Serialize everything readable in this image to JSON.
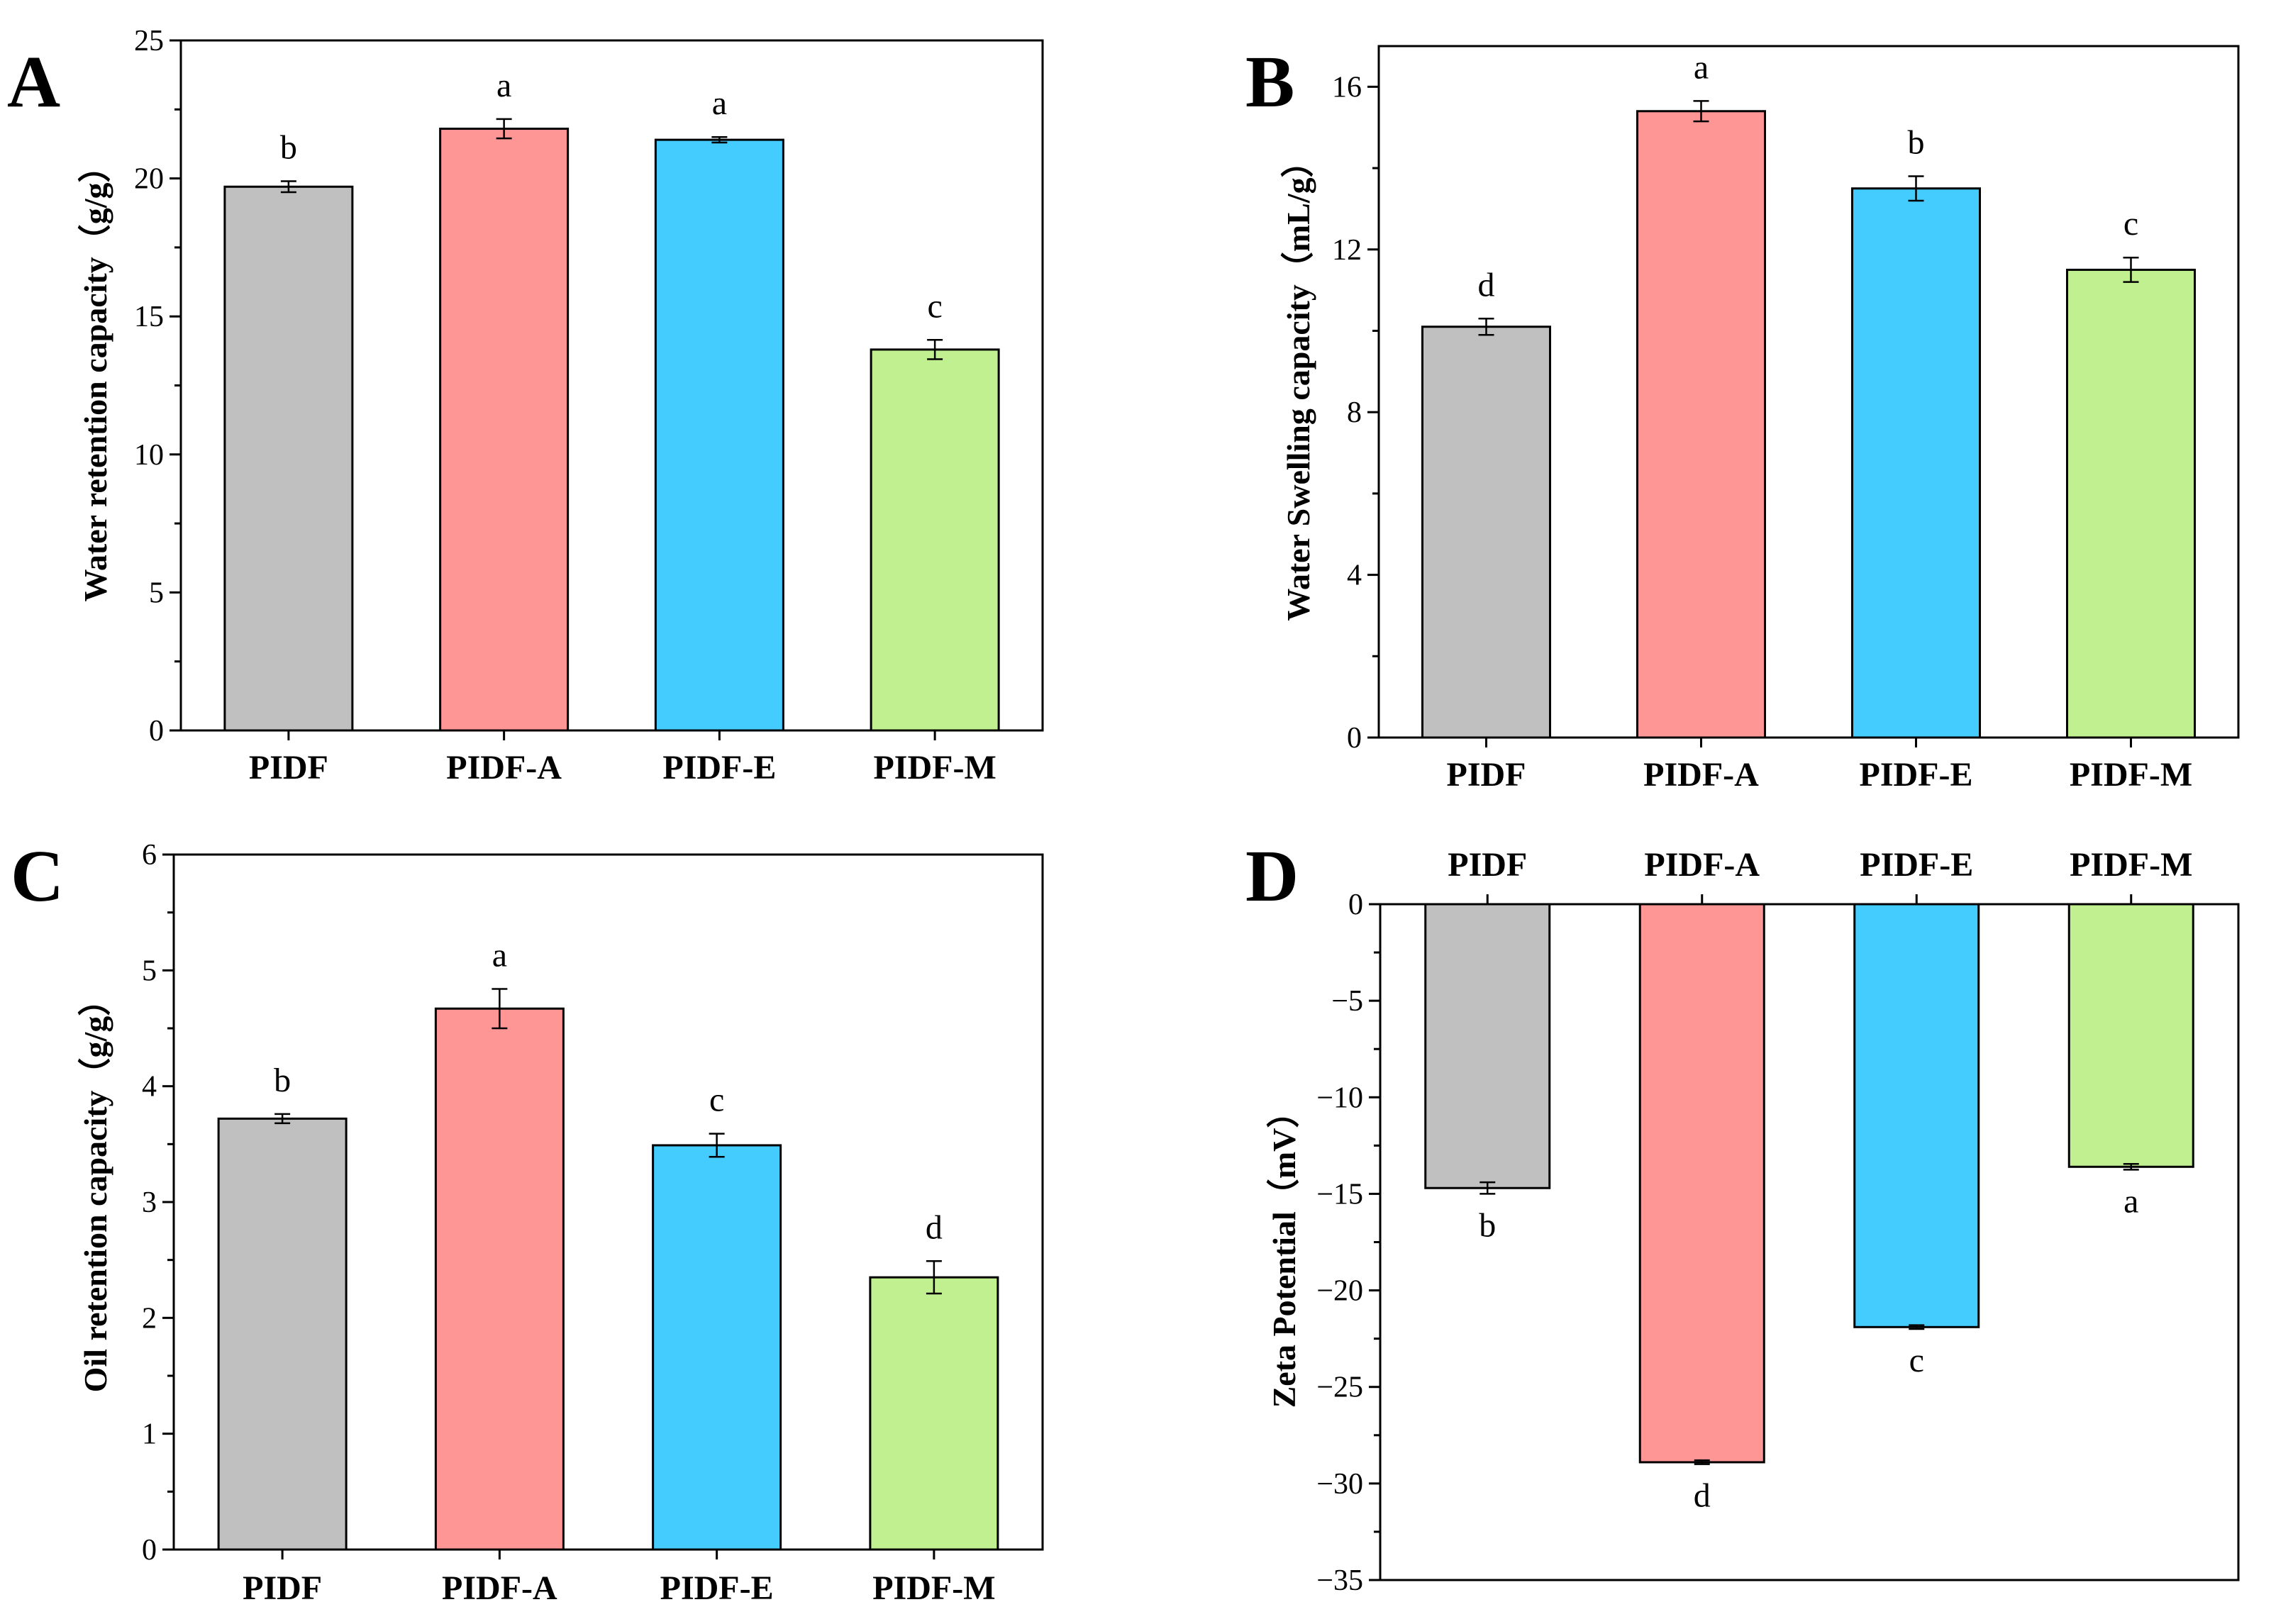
{
  "chart_data": [
    {
      "id": "A",
      "type": "bar",
      "panel_label": "A",
      "title": "",
      "xlabel": "",
      "ylabel": "Water retention capacity（g/g）",
      "categories": [
        "PIDF",
        "PIDF-A",
        "PIDF-E",
        "PIDF-M"
      ],
      "values": [
        19.7,
        21.8,
        21.4,
        13.8
      ],
      "errors": [
        0.2,
        0.35,
        0.1,
        0.35
      ],
      "significance": [
        "b",
        "a",
        "a",
        "c"
      ],
      "colors": [
        "#c0c0c0",
        "#ff9696",
        "#44ccff",
        "#c0f090"
      ],
      "ylim": [
        0,
        25
      ],
      "yticks": [
        0,
        5,
        10,
        15,
        20,
        25
      ],
      "ytick_labels": [
        "0",
        "5",
        "10",
        "15",
        "20",
        "25"
      ],
      "grid": false,
      "category_axis": "bottom"
    },
    {
      "id": "B",
      "type": "bar",
      "panel_label": "B",
      "title": "",
      "xlabel": "",
      "ylabel": "Water Swelling capacity（mL/g）",
      "categories": [
        "PIDF",
        "PIDF-A",
        "PIDF-E",
        "PIDF-M"
      ],
      "values": [
        10.1,
        15.4,
        13.5,
        11.5
      ],
      "errors": [
        0.2,
        0.25,
        0.3,
        0.3
      ],
      "significance": [
        "d",
        "a",
        "b",
        "c"
      ],
      "colors": [
        "#c0c0c0",
        "#ff9696",
        "#44ccff",
        "#c0f090"
      ],
      "ylim": [
        0,
        17
      ],
      "yticks": [
        0,
        4,
        8,
        12,
        16
      ],
      "ytick_labels": [
        "0",
        "4",
        "8",
        "12",
        "16"
      ],
      "grid": false,
      "category_axis": "bottom"
    },
    {
      "id": "C",
      "type": "bar",
      "panel_label": "C",
      "title": "",
      "xlabel": "",
      "ylabel": "Oil retention capacity（g/g）",
      "categories": [
        "PIDF",
        "PIDF-A",
        "PIDF-E",
        "PIDF-M"
      ],
      "values": [
        3.72,
        4.67,
        3.49,
        2.35
      ],
      "errors": [
        0.04,
        0.17,
        0.1,
        0.14
      ],
      "significance": [
        "b",
        "a",
        "c",
        "d"
      ],
      "colors": [
        "#c0c0c0",
        "#ff9696",
        "#44ccff",
        "#c0f090"
      ],
      "ylim": [
        0,
        6
      ],
      "yticks": [
        0,
        1,
        2,
        3,
        4,
        5,
        6
      ],
      "ytick_labels": [
        "0",
        "1",
        "2",
        "3",
        "4",
        "5",
        "6"
      ],
      "grid": false,
      "category_axis": "bottom"
    },
    {
      "id": "D",
      "type": "bar",
      "panel_label": "D",
      "title": "",
      "xlabel": "",
      "ylabel": "Zeta Potential（mV）",
      "categories": [
        "PIDF",
        "PIDF-A",
        "PIDF-E",
        "PIDF-M"
      ],
      "values": [
        -14.7,
        -28.9,
        -21.9,
        -13.6
      ],
      "errors": [
        0.3,
        0.1,
        0.1,
        0.15
      ],
      "significance": [
        "b",
        "d",
        "c",
        "a"
      ],
      "colors": [
        "#c0c0c0",
        "#ff9696",
        "#44ccff",
        "#c0f090"
      ],
      "ylim": [
        -35,
        0
      ],
      "yticks": [
        -35,
        -30,
        -25,
        -20,
        -15,
        -10,
        -5,
        0
      ],
      "ytick_labels": [
        "−35",
        "−30",
        "−25",
        "−20",
        "−15",
        "−10",
        "−5",
        "0"
      ],
      "grid": false,
      "category_axis": "top"
    }
  ]
}
